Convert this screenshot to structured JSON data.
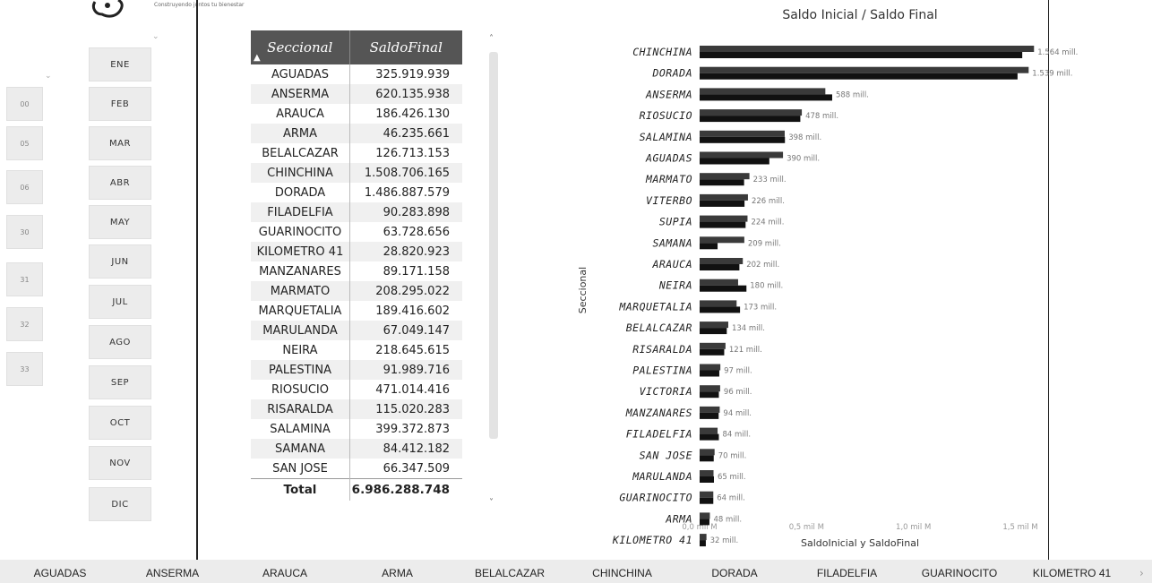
{
  "logo": {
    "tagline": "Construyendo juntos tu bienestar"
  },
  "months": [
    "ENE",
    "FEB",
    "MAR",
    "ABR",
    "MAY",
    "JUN",
    "JUL",
    "AGO",
    "SEP",
    "OCT",
    "NOV",
    "DIC"
  ],
  "days": [
    "00",
    "05",
    "06",
    "30",
    "31",
    "32",
    "33"
  ],
  "table": {
    "headers": {
      "seccional": "Seccional",
      "saldo_final": "SaldoFinal"
    },
    "rows": [
      {
        "seccional": "AGUADAS",
        "saldo": "325.919.939"
      },
      {
        "seccional": "ANSERMA",
        "saldo": "620.135.938"
      },
      {
        "seccional": "ARAUCA",
        "saldo": "186.426.130"
      },
      {
        "seccional": "ARMA",
        "saldo": "46.235.661"
      },
      {
        "seccional": "BELALCAZAR",
        "saldo": "126.713.153"
      },
      {
        "seccional": "CHINCHINA",
        "saldo": "1.508.706.165"
      },
      {
        "seccional": "DORADA",
        "saldo": "1.486.887.579"
      },
      {
        "seccional": "FILADELFIA",
        "saldo": "90.283.898"
      },
      {
        "seccional": "GUARINOCITO",
        "saldo": "63.728.656"
      },
      {
        "seccional": "KILOMETRO 41",
        "saldo": "28.820.923"
      },
      {
        "seccional": "MANZANARES",
        "saldo": "89.171.158"
      },
      {
        "seccional": "MARMATO",
        "saldo": "208.295.022"
      },
      {
        "seccional": "MARQUETALIA",
        "saldo": "189.416.602"
      },
      {
        "seccional": "MARULANDA",
        "saldo": "67.049.147"
      },
      {
        "seccional": "NEIRA",
        "saldo": "218.645.615"
      },
      {
        "seccional": "PALESTINA",
        "saldo": "91.989.716"
      },
      {
        "seccional": "RIOSUCIO",
        "saldo": "471.014.416"
      },
      {
        "seccional": "RISARALDA",
        "saldo": "115.020.283"
      },
      {
        "seccional": "SALAMINA",
        "saldo": "399.372.873"
      },
      {
        "seccional": "SAMANA",
        "saldo": "84.412.182"
      },
      {
        "seccional": "SAN JOSE",
        "saldo": "66.347.509"
      }
    ],
    "total_label": "Total",
    "total_value": "6.986.288.748"
  },
  "chart_data": {
    "type": "bar",
    "orientation": "horizontal",
    "title": "Saldo Inicial / Saldo Final",
    "xlabel": "SaldoInicial y SaldoFinal",
    "ylabel": "Seccional",
    "xlim": [
      0,
      1.5
    ],
    "x_ticks": [
      0,
      0.5,
      1.0,
      1.5
    ],
    "x_tick_labels": [
      "0,0 mil M",
      "0,5 mil M",
      "1,0 mil M",
      "1,5 mil M"
    ],
    "categories": [
      "CHINCHINA",
      "DORADA",
      "ANSERMA",
      "RIOSUCIO",
      "SALAMINA",
      "AGUADAS",
      "MARMATO",
      "VITERBO",
      "SUPIA",
      "SAMANA",
      "ARAUCA",
      "NEIRA",
      "MARQUETALIA",
      "BELALCAZAR",
      "RISARALDA",
      "PALESTINA",
      "VICTORIA",
      "MANZANARES",
      "FILADELFIA",
      "SAN JOSE",
      "MARULANDA",
      "GUARINOCITO",
      "ARMA",
      "KILOMETRO 41"
    ],
    "data_labels": [
      "1.564 mill.",
      "1.539 mill.",
      "588 mill.",
      "478 mill.",
      "398 mill.",
      "390 mill.",
      "233 mill.",
      "226 mill.",
      "224 mill.",
      "209 mill.",
      "202 mill.",
      "180 mill.",
      "173 mill.",
      "134 mill.",
      "121 mill.",
      "97 mill.",
      "96 mill.",
      "94 mill.",
      "84 mill.",
      "70 mill.",
      "65 mill.",
      "64 mill.",
      "48 mill.",
      "32 mill."
    ],
    "series": [
      {
        "values": [
          1.564,
          1.539,
          0.588,
          0.478,
          0.398,
          0.39,
          0.233,
          0.226,
          0.224,
          0.209,
          0.202,
          0.18,
          0.173,
          0.134,
          0.121,
          0.097,
          0.096,
          0.094,
          0.084,
          0.07,
          0.065,
          0.064,
          0.048,
          0.032
        ],
        "color": "#3a3a3a"
      },
      {
        "values": [
          1.509,
          1.487,
          0.62,
          0.471,
          0.399,
          0.326,
          0.208,
          0.21,
          0.215,
          0.084,
          0.186,
          0.219,
          0.189,
          0.127,
          0.115,
          0.092,
          0.09,
          0.089,
          0.09,
          0.066,
          0.067,
          0.064,
          0.046,
          0.029
        ],
        "color": "#111111"
      }
    ]
  },
  "bottom_slicer": [
    "AGUADAS",
    "ANSERMA",
    "ARAUCA",
    "ARMA",
    "BELALCAZAR",
    "CHINCHINA",
    "DORADA",
    "FILADELFIA",
    "GUARINOCITO",
    "KILOMETRO 41"
  ]
}
